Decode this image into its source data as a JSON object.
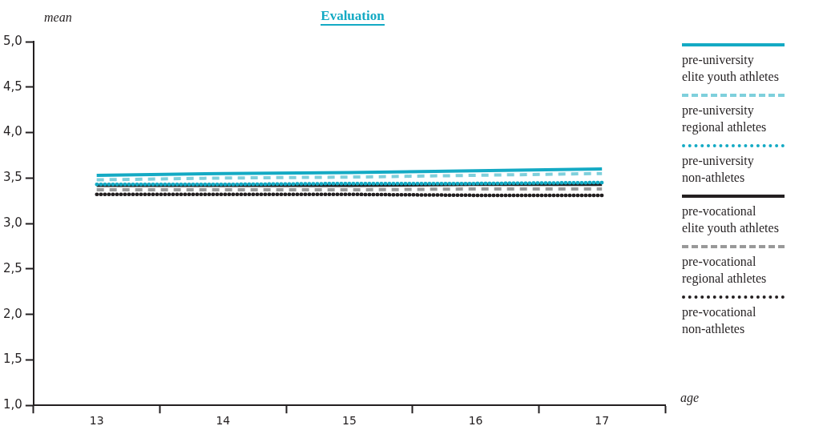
{
  "chart_data": {
    "type": "line",
    "title": "Evaluation",
    "xlabel": "age",
    "ylabel": "mean",
    "categories": [
      "13",
      "14",
      "15",
      "16",
      "17"
    ],
    "ylim": [
      1,
      5
    ],
    "yticks": [
      {
        "value": 1,
        "label": "1,0"
      },
      {
        "value": 1.5,
        "label": "1,5"
      },
      {
        "value": 2,
        "label": "2,0"
      },
      {
        "value": 2.5,
        "label": "2,5"
      },
      {
        "value": 3,
        "label": "3,0"
      },
      {
        "value": 3.5,
        "label": "3,5"
      },
      {
        "value": 4,
        "label": "4,0"
      },
      {
        "value": 4.5,
        "label": "4,5"
      },
      {
        "value": 5,
        "label": "5,0"
      }
    ],
    "grid": false,
    "legend": "right",
    "marker": "none",
    "series": [
      {
        "name": "pre-university elite youth athletes",
        "color": "#14aac4",
        "line_style": "solid",
        "values": [
          3.53,
          3.55,
          3.56,
          3.58,
          3.6
        ]
      },
      {
        "name": "pre-university regional athletes",
        "color": "#7fd0dc",
        "line_style": "dashed",
        "values": [
          3.48,
          3.5,
          3.51,
          3.53,
          3.55
        ]
      },
      {
        "name": "pre-university non-athletes",
        "color": "#14aac4",
        "line_style": "dotted",
        "values": [
          3.43,
          3.43,
          3.44,
          3.44,
          3.45
        ]
      },
      {
        "name": "pre-vocational elite youth athletes",
        "color": "#231f20",
        "line_style": "solid",
        "values": [
          3.42,
          3.42,
          3.42,
          3.43,
          3.43
        ]
      },
      {
        "name": "pre-vocational regional athletes",
        "color": "#999999",
        "line_style": "dashed",
        "values": [
          3.37,
          3.37,
          3.37,
          3.38,
          3.38
        ]
      },
      {
        "name": "pre-vocational non-athletes",
        "color": "#231f20",
        "line_style": "dotted",
        "values": [
          3.32,
          3.32,
          3.32,
          3.31,
          3.31
        ]
      }
    ]
  }
}
